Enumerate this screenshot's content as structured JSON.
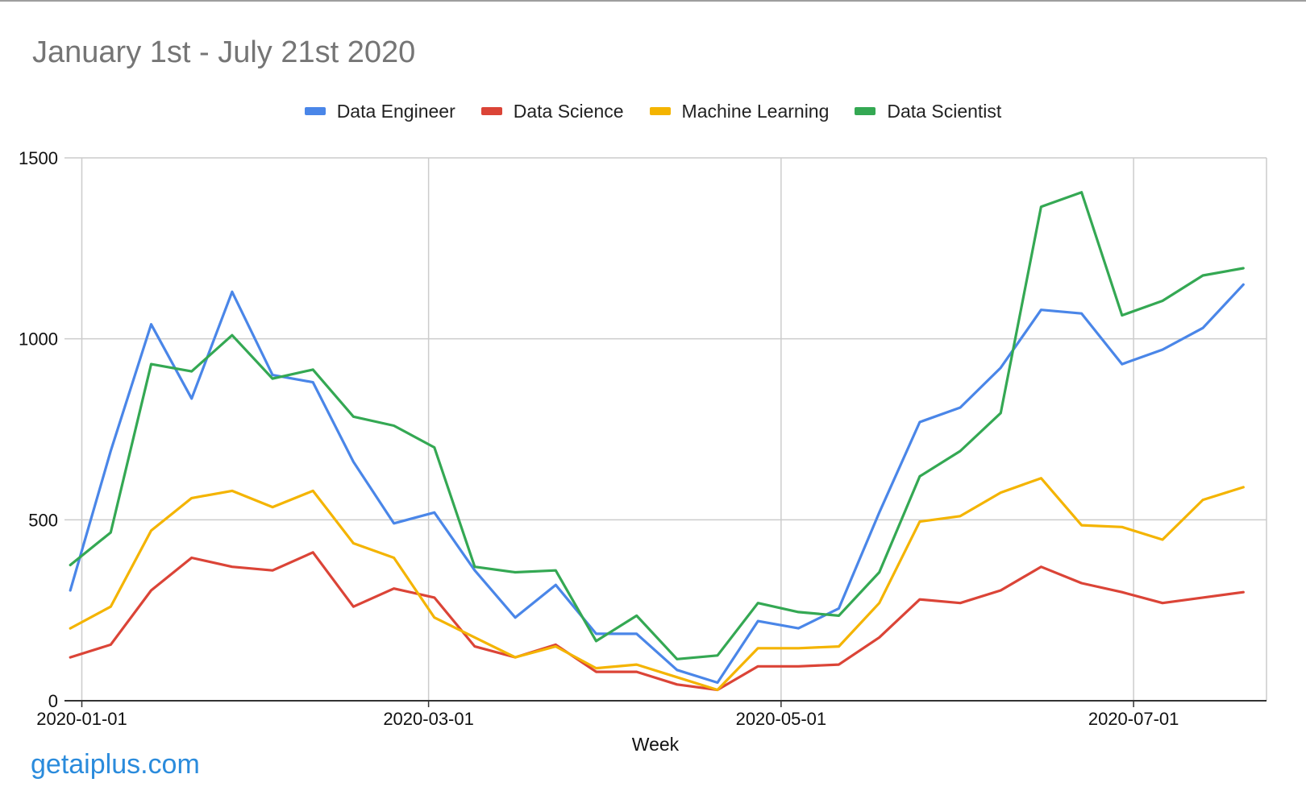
{
  "watermark": "getaiplus.com",
  "chart_data": {
    "type": "line",
    "title": "January 1st - July 21st 2020",
    "xlabel": "Week",
    "ylabel": "",
    "ylim": [
      0,
      1500
    ],
    "yticks": [
      0,
      500,
      1000,
      1500
    ],
    "xticks": [
      "2020-01-01",
      "2020-03-01",
      "2020-05-01",
      "2020-07-01"
    ],
    "grid": true,
    "legend_position": "top",
    "x": [
      "2019-12-30",
      "2020-01-06",
      "2020-01-13",
      "2020-01-20",
      "2020-01-27",
      "2020-02-03",
      "2020-02-10",
      "2020-02-17",
      "2020-02-24",
      "2020-03-02",
      "2020-03-09",
      "2020-03-16",
      "2020-03-23",
      "2020-03-30",
      "2020-04-06",
      "2020-04-13",
      "2020-04-20",
      "2020-04-27",
      "2020-05-04",
      "2020-05-11",
      "2020-05-18",
      "2020-05-25",
      "2020-06-01",
      "2020-06-08",
      "2020-06-15",
      "2020-06-22",
      "2020-06-29",
      "2020-07-06",
      "2020-07-13",
      "2020-07-20"
    ],
    "series": [
      {
        "name": "Data Engineer",
        "color": "#4a86e8",
        "values": [
          305,
          690,
          1040,
          835,
          1130,
          900,
          880,
          660,
          490,
          520,
          360,
          230,
          320,
          185,
          185,
          85,
          50,
          220,
          200,
          255,
          520,
          770,
          810,
          920,
          1080,
          1070,
          930,
          970,
          1030,
          1150
        ]
      },
      {
        "name": "Data Science",
        "color": "#db4437",
        "values": [
          120,
          155,
          305,
          395,
          370,
          360,
          410,
          260,
          310,
          285,
          150,
          120,
          155,
          80,
          80,
          45,
          30,
          95,
          95,
          100,
          175,
          280,
          270,
          305,
          370,
          325,
          300,
          270,
          285,
          300
        ]
      },
      {
        "name": "Machine Learning",
        "color": "#f4b400",
        "values": [
          200,
          260,
          470,
          560,
          580,
          535,
          580,
          435,
          395,
          230,
          175,
          120,
          150,
          90,
          100,
          65,
          30,
          145,
          145,
          150,
          270,
          495,
          510,
          575,
          615,
          485,
          480,
          445,
          555,
          590
        ]
      },
      {
        "name": "Data Scientist",
        "color": "#34a853",
        "values": [
          375,
          465,
          930,
          910,
          1010,
          890,
          915,
          785,
          760,
          700,
          370,
          355,
          360,
          165,
          235,
          115,
          125,
          270,
          245,
          235,
          355,
          620,
          690,
          795,
          1365,
          1405,
          1065,
          1105,
          1175,
          1195
        ]
      }
    ]
  }
}
